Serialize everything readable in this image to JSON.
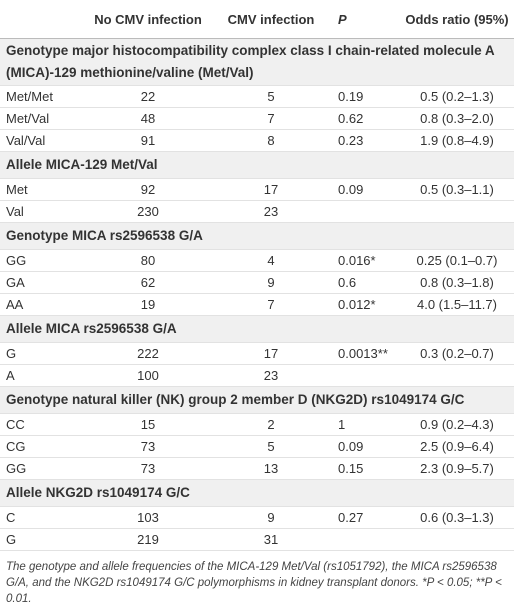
{
  "table": {
    "header": [
      "",
      "No CMV infection",
      "CMV infection",
      "P",
      "Odds ratio (95%)"
    ],
    "sections": [
      {
        "title": "Genotype major histocompatibility complex class I chain-related molecule A (MICA)-129 methionine/valine (Met/Val)",
        "rows": [
          [
            "Met/Met",
            "22",
            "5",
            "0.19",
            "0.5 (0.2–1.3)"
          ],
          [
            "Met/Val",
            "48",
            "7",
            "0.62",
            "0.8 (0.3–2.0)"
          ],
          [
            "Val/Val",
            "91",
            "8",
            "0.23",
            "1.9 (0.8–4.9)"
          ]
        ]
      },
      {
        "title": "Allele MICA-129 Met/Val",
        "rows": [
          [
            "Met",
            "92",
            "17",
            "0.09",
            "0.5 (0.3–1.1)"
          ],
          [
            "Val",
            "230",
            "23",
            "",
            ""
          ]
        ]
      },
      {
        "title": "Genotype MICA rs2596538 G/A",
        "rows": [
          [
            "GG",
            "80",
            "4",
            "0.016*",
            "0.25 (0.1–0.7)"
          ],
          [
            "GA",
            "62",
            "9",
            "0.6",
            "0.8 (0.3–1.8)"
          ],
          [
            "AA",
            "19",
            "7",
            "0.012*",
            "4.0 (1.5–11.7)"
          ]
        ]
      },
      {
        "title": "Allele MICA rs2596538 G/A",
        "rows": [
          [
            "G",
            "222",
            "17",
            "0.0013**",
            "0.3 (0.2–0.7)"
          ],
          [
            "A",
            "100",
            "23",
            "",
            ""
          ]
        ]
      },
      {
        "title": "Genotype natural killer (NK) group 2 member D (NKG2D) rs1049174 G/C",
        "rows": [
          [
            "CC",
            "15",
            "2",
            "1",
            "0.9 (0.2–4.3)"
          ],
          [
            "CG",
            "73",
            "5",
            "0.09",
            "2.5 (0.9–6.4)"
          ],
          [
            "GG",
            "73",
            "13",
            "0.15",
            "2.3 (0.9–5.7)"
          ]
        ]
      },
      {
        "title": "Allele NKG2D rs1049174 G/C",
        "rows": [
          [
            "C",
            "103",
            "9",
            "0.27",
            "0.6 (0.3–1.3)"
          ],
          [
            "G",
            "219",
            "31",
            "",
            ""
          ]
        ]
      }
    ]
  },
  "footnote": "The genotype and allele frequencies of the MICA-129 Met/Val (rs1051792), the MICA rs2596538 G/A, and the NKG2D rs1049174 G/C polymorphisms in kidney transplant donors. *P < 0.05; **P < 0.01."
}
